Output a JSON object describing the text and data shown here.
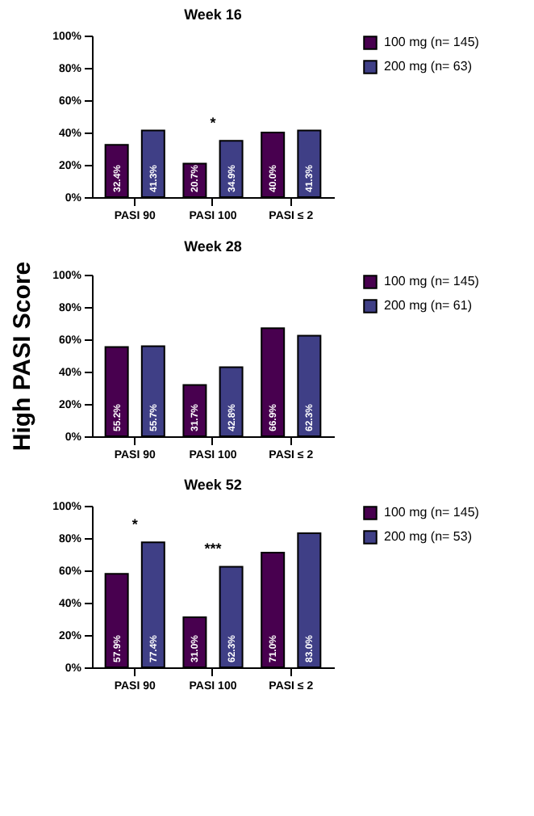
{
  "chart_data": [
    {
      "type": "bar",
      "title": "Week 16",
      "categories": [
        "PASI 90",
        "PASI 100",
        "PASI ≤ 2"
      ],
      "series": [
        {
          "name": "100 mg (n= 145)",
          "color": "#48004f",
          "values": [
            32.4,
            20.7,
            40.0
          ],
          "value_labels": [
            "32.4%",
            "20.7%",
            "40.0%"
          ]
        },
        {
          "name": "200 mg (n= 63)",
          "color": "#3f3f86",
          "values": [
            41.3,
            34.9,
            41.3
          ],
          "value_labels": [
            "41.3%",
            "34.9%",
            "41.3%"
          ]
        }
      ],
      "ylim": [
        0,
        100
      ],
      "yticks": [
        {
          "value": 0,
          "label": "0%"
        },
        {
          "value": 20,
          "label": "20%"
        },
        {
          "value": 40,
          "label": "40%"
        },
        {
          "value": 60,
          "label": "60%"
        },
        {
          "value": 80,
          "label": "80%"
        },
        {
          "value": 100,
          "label": "100%"
        }
      ],
      "annotations": [
        {
          "text": "*",
          "x": "PASI 100",
          "y": 34.9
        }
      ],
      "legend": "right",
      "grid": false
    },
    {
      "type": "bar",
      "title": "Week 28",
      "ylabel": "High PASI Score",
      "categories": [
        "PASI 90",
        "PASI 100",
        "PASI ≤ 2"
      ],
      "series": [
        {
          "name": "100 mg (n= 145)",
          "color": "#48004f",
          "values": [
            55.2,
            31.7,
            66.9
          ],
          "value_labels": [
            "55.2%",
            "31.7%",
            "66.9%"
          ]
        },
        {
          "name": "200 mg (n= 61)",
          "color": "#3f3f86",
          "values": [
            55.7,
            42.8,
            62.3
          ],
          "value_labels": [
            "55.7%",
            "42.8%",
            "62.3%"
          ]
        }
      ],
      "ylim": [
        0,
        100
      ],
      "yticks": [
        {
          "value": 0,
          "label": "0%"
        },
        {
          "value": 20,
          "label": "20%"
        },
        {
          "value": 40,
          "label": "40%"
        },
        {
          "value": 60,
          "label": "60%"
        },
        {
          "value": 80,
          "label": "80%"
        },
        {
          "value": 100,
          "label": "100%"
        }
      ],
      "legend": "right",
      "grid": false
    },
    {
      "type": "bar",
      "title": "Week 52",
      "categories": [
        "PASI 90",
        "PASI 100",
        "PASI ≤ 2"
      ],
      "series": [
        {
          "name": "100 mg (n= 145)",
          "color": "#48004f",
          "values": [
            57.9,
            31.0,
            71.0
          ],
          "value_labels": [
            "57.9%",
            "31.0%",
            "71.0%"
          ]
        },
        {
          "name": "200 mg (n= 53)",
          "color": "#3f3f86",
          "values": [
            77.4,
            62.3,
            83.0
          ],
          "value_labels": [
            "77.4%",
            "62.3%",
            "83.0%"
          ]
        }
      ],
      "ylim": [
        0,
        100
      ],
      "yticks": [
        {
          "value": 0,
          "label": "0%"
        },
        {
          "value": 20,
          "label": "20%"
        },
        {
          "value": 40,
          "label": "40%"
        },
        {
          "value": 60,
          "label": "60%"
        },
        {
          "value": 80,
          "label": "80%"
        },
        {
          "value": 100,
          "label": "100%"
        }
      ],
      "annotations": [
        {
          "text": "*",
          "x": "PASI 90",
          "y": 77.4
        },
        {
          "text": "***",
          "x": "PASI 100",
          "y": 62.3
        }
      ],
      "legend": "right",
      "grid": false
    }
  ]
}
